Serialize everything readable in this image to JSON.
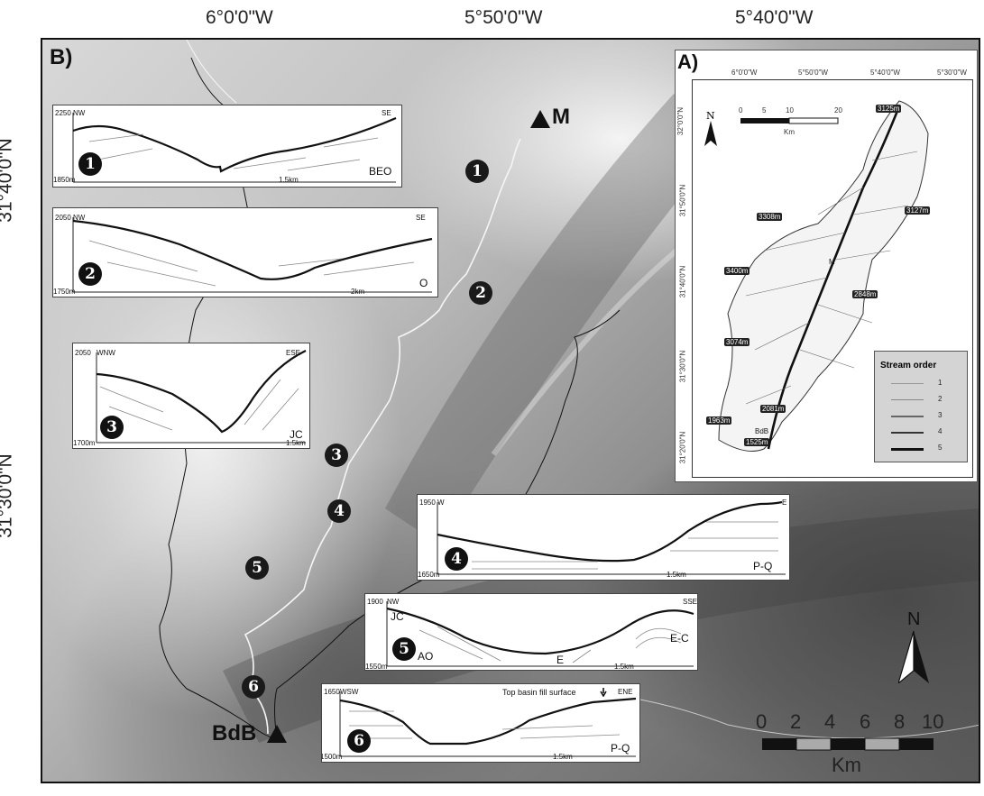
{
  "coords": {
    "top": [
      "6°0'0\"W",
      "5°50'0\"W",
      "5°40'0\"W"
    ],
    "left": [
      "31°40'0\"N",
      "31°30'0\"N"
    ]
  },
  "main": {
    "panel_label": "B)",
    "point_m": "M",
    "point_bdb": "BdB",
    "markers": [
      "1",
      "2",
      "3",
      "4",
      "5",
      "6"
    ]
  },
  "profiles": [
    {
      "num": "1",
      "top_val": "2250",
      "bottom_val": "1850m",
      "left_dir": "NW",
      "right_dir": "SE",
      "scale": "1.5km",
      "unit": "BEO"
    },
    {
      "num": "2",
      "top_val": "2050",
      "bottom_val": "1750m",
      "left_dir": "NW",
      "right_dir": "SE",
      "scale": "2km",
      "unit": "O"
    },
    {
      "num": "3",
      "top_val": "2050",
      "bottom_val": "1700m",
      "left_dir": "WNW",
      "right_dir": "ESE",
      "scale": "1.5km",
      "unit": "JC"
    },
    {
      "num": "4",
      "top_val": "1950",
      "bottom_val": "1650m",
      "left_dir": "W",
      "right_dir": "E",
      "scale": "1.5km",
      "unit": "P-Q"
    },
    {
      "num": "5",
      "top_val": "1900",
      "bottom_val": "1550m",
      "left_dir": "NW",
      "right_dir": "SSE",
      "scale": "1.5km",
      "units": [
        "JC",
        "AO",
        "E",
        "E-C"
      ]
    },
    {
      "num": "6",
      "top_val": "1650",
      "bottom_val": "1500m",
      "left_dir": "WSW",
      "right_dir": "ENE",
      "scale": "1.5km",
      "unit": "P-Q",
      "note": "Top basin fill surface"
    }
  ],
  "inset": {
    "panel_label": "A)",
    "top_ticks": [
      "6°0'0\"W",
      "5°50'0\"W",
      "5°40'0\"W",
      "5°30'0\"W"
    ],
    "left_ticks": [
      "32°0'0\"N",
      "31°50'0\"N",
      "31°40'0\"N",
      "31°30'0\"N",
      "31°20'0\"N"
    ],
    "north": "N",
    "scale_labels": [
      "0",
      "5",
      "10",
      "20"
    ],
    "scale_unit": "Km",
    "peaks": [
      "3125m",
      "3127m",
      "3308m",
      "3400m",
      "2848m",
      "3074m",
      "2081m",
      "1963m",
      "1525m"
    ],
    "point_m": "M",
    "point_bdb": "BdB",
    "legend_title": "Stream order",
    "legend_items": [
      "1",
      "2",
      "3",
      "4",
      "5"
    ]
  },
  "scalebar": {
    "labels": [
      "0",
      "2",
      "4",
      "6",
      "8",
      "10"
    ],
    "unit": "Km",
    "north": "N"
  }
}
